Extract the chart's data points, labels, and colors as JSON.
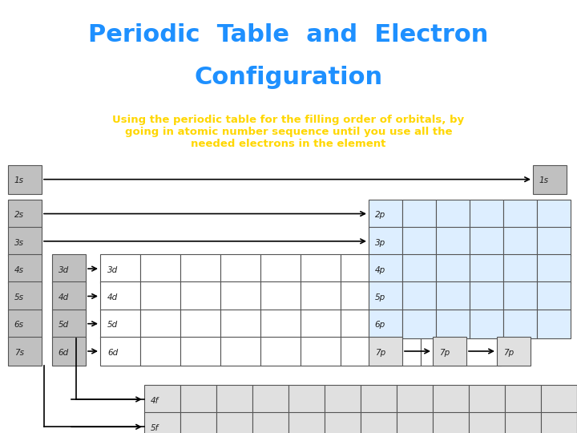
{
  "title_line1": "Periodic  Table  and  Electron",
  "title_line2": "Configuration",
  "title_color": "#1E90FF",
  "title_bg": "#000000",
  "subtitle": "Using the periodic table for the filling order of orbitals, by\ngoing in atomic number sequence until you use all the\nneeded electrons in the element",
  "subtitle_color": "#FFD700",
  "subtitle_bg": "#FFFFFF",
  "bg_color": "#FFFFFF",
  "cell_color_gray": "#C0C0C0",
  "cell_color_white": "#FFFFFF",
  "cell_color_blue": "#DDEEFF",
  "cell_color_lgray": "#E0E0E0",
  "border_color": "#555555"
}
